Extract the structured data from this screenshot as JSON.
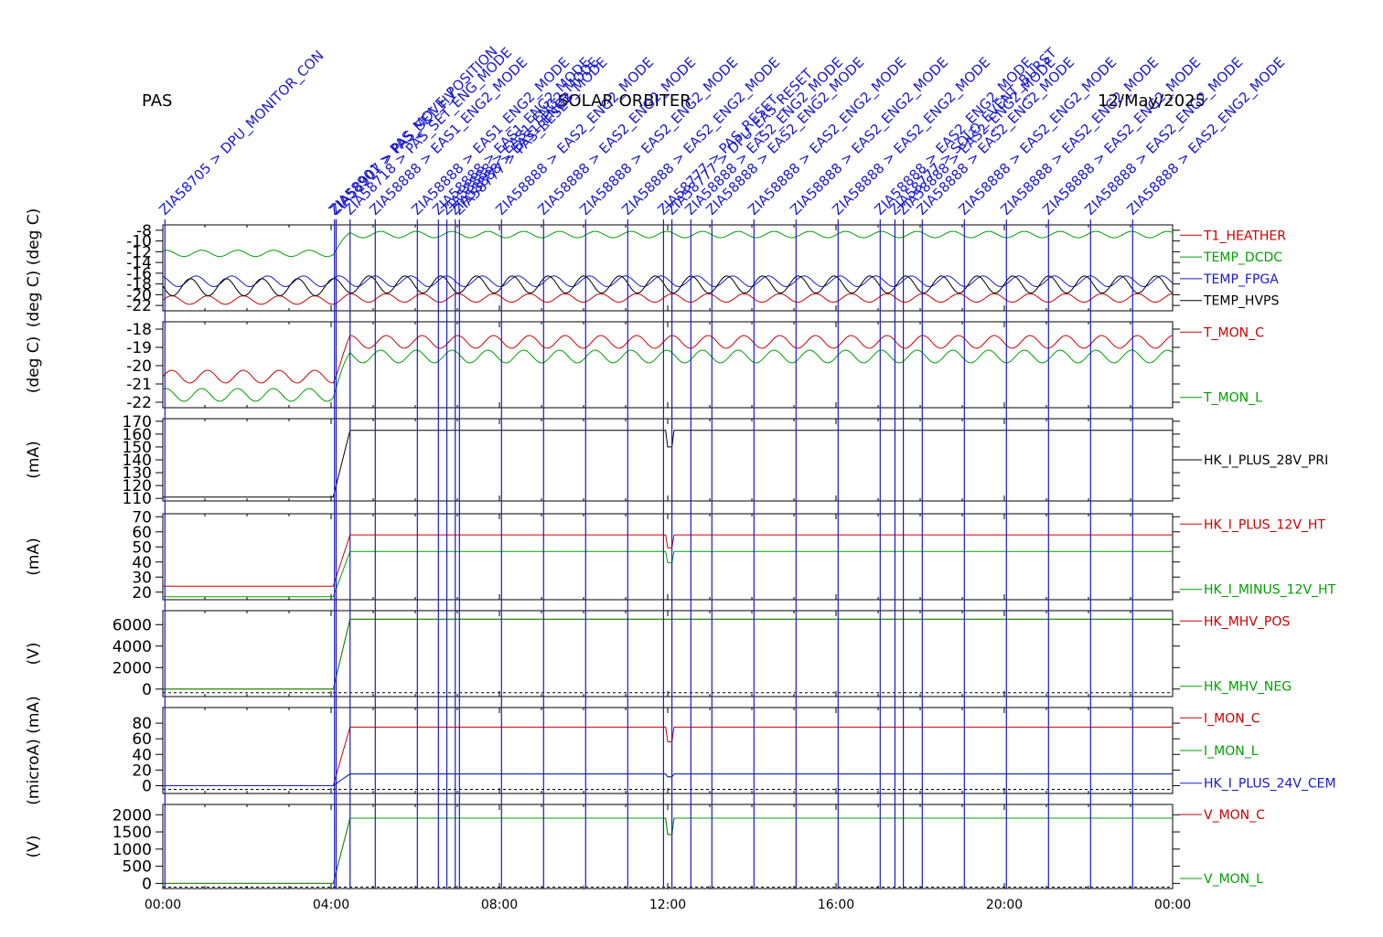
{
  "header": {
    "instrument": "PAS",
    "mission": "SOLAR ORBITER",
    "date": "12/May/2025"
  },
  "colors": {
    "red": "#cc0000",
    "green": "#00a000",
    "blue": "#1a1acc",
    "black": "#000000",
    "event_line": "#1a1acc"
  },
  "chart_data": [
    {
      "type": "line",
      "panel": 1,
      "ylabel": "(deg C)  (deg C)",
      "ylim": [
        -23,
        -7
      ],
      "yticks": [
        -8,
        -10,
        -12,
        -14,
        -16,
        -18,
        -20,
        -22
      ],
      "series": [
        {
          "name": "T1_HEATHER",
          "color": "red",
          "pre": -21.0,
          "post": -20.6,
          "amp": 0.8
        },
        {
          "name": "TEMP_DCDC",
          "color": "green",
          "pre": -12.3,
          "post": -8.8,
          "amp": 0.6
        },
        {
          "name": "TEMP_FPGA",
          "color": "blue",
          "pre": -17.5,
          "post": -17.5,
          "amp": 1.0
        },
        {
          "name": "TEMP_HVPS",
          "color": "black",
          "pre": -18.6,
          "post": -18.1,
          "amp": 1.6
        }
      ]
    },
    {
      "type": "line",
      "panel": 2,
      "ylabel": "(deg C)",
      "ylim": [
        -22.3,
        -17.6
      ],
      "yticks": [
        -18,
        -19,
        -20,
        -21,
        -22
      ],
      "series": [
        {
          "name": "T_MON_C",
          "color": "red",
          "pre": -20.6,
          "post": -18.7,
          "amp": 0.35
        },
        {
          "name": "T_MON_L",
          "color": "green",
          "pre": -21.6,
          "post": -19.5,
          "amp": 0.35
        }
      ]
    },
    {
      "type": "line",
      "panel": 3,
      "ylabel": "(mA)",
      "ylim": [
        108,
        172
      ],
      "yticks": [
        170,
        160,
        150,
        140,
        130,
        120,
        110
      ],
      "series": [
        {
          "name": "HK_I_PLUS_28V_PRI",
          "color": "black",
          "pre": 111,
          "post": 163,
          "amp": 0
        }
      ]
    },
    {
      "type": "line",
      "panel": 4,
      "ylabel": "(mA)",
      "ylim": [
        15,
        72
      ],
      "yticks": [
        70,
        60,
        50,
        40,
        30,
        20
      ],
      "series": [
        {
          "name": "HK_I_PLUS_12V_HT",
          "color": "red",
          "pre": 24,
          "post": 58,
          "amp": 0
        },
        {
          "name": "HK_I_MINUS_12V_HT",
          "color": "green",
          "pre": 17,
          "post": 47,
          "amp": 0
        }
      ]
    },
    {
      "type": "line",
      "panel": 5,
      "ylabel": "(V)",
      "ylim": [
        -700,
        7300
      ],
      "yticks": [
        6000,
        4000,
        2000,
        0
      ],
      "series": [
        {
          "name": "HK_MHV_POS",
          "color": "red",
          "pre": 0,
          "post": 6500,
          "amp": 0
        },
        {
          "name": "HK_MHV_NEG",
          "color": "green",
          "pre": 0,
          "post": 6500,
          "amp": 0
        }
      ]
    },
    {
      "type": "line",
      "panel": 6,
      "ylabel": "(microA) (mA)",
      "ylim": [
        -10,
        100
      ],
      "yticks": [
        80,
        60,
        40,
        20,
        0
      ],
      "series": [
        {
          "name": "I_MON_C",
          "color": "red",
          "pre": 0,
          "post": 75,
          "amp": 0
        },
        {
          "name": "I_MON_L",
          "color": "green",
          "pre": 0,
          "post": 15,
          "amp": 0
        },
        {
          "name": "HK_I_PLUS_24V_CEM",
          "color": "blue",
          "pre": 0,
          "post": 15,
          "amp": 0
        }
      ]
    },
    {
      "type": "line",
      "panel": 7,
      "ylabel": "(V)",
      "ylim": [
        -150,
        2300
      ],
      "yticks": [
        2000,
        1500,
        1000,
        500,
        0
      ],
      "series": [
        {
          "name": "V_MON_C",
          "color": "red",
          "pre": 0,
          "post": 1900,
          "amp": 0
        },
        {
          "name": "V_MON_L",
          "color": "green",
          "pre": 0,
          "post": 1900,
          "amp": 0
        }
      ]
    }
  ],
  "x_axis": {
    "xlim_hours": [
      0,
      24
    ],
    "ticks": [
      "00:00",
      "04:00",
      "08:00",
      "12:00",
      "16:00",
      "20:00",
      "00:00"
    ]
  },
  "events": [
    {
      "t": 0.05,
      "label": "ZIA58705 > DPU_MONITOR_CON"
    },
    {
      "t": 4.08,
      "label": "ZIA58901 > PAS_MOVE_POSITION"
    },
    {
      "t": 4.12,
      "label": "ZIA58907 > PAS_SET_HV"
    },
    {
      "t": 4.45,
      "label": "ZIA58718 > PAS_SET_ENG_MODE"
    },
    {
      "t": 5.05,
      "label": "ZIA58888 > EAS1_ENG2_MODE"
    },
    {
      "t": 6.05,
      "label": "ZIA58888 > EAS1_ENG2_MODE"
    },
    {
      "t": 6.55,
      "label": "ZIA58888 > EAS1_ENG2_MODE"
    },
    {
      "t": 6.75,
      "label": "ZIA58888 > EAS1_ENG2_MODE"
    },
    {
      "t": 6.95,
      "label": "ZIA58888 > EAS1_ENG2_MODE"
    },
    {
      "t": 7.05,
      "label": "ZIA58777 > PAS_RESET"
    },
    {
      "t": 8.05,
      "label": "ZIA58888 > EAS2_ENG2_MODE"
    },
    {
      "t": 9.05,
      "label": "ZIA58888 > EAS2_ENG2_MODE"
    },
    {
      "t": 10.05,
      "label": "ZIA58888 > EAS2_ENG2_MODE"
    },
    {
      "t": 11.05,
      "label": "ZIA58888 > EAS2_ENG2_MODE"
    },
    {
      "t": 11.9,
      "label": "ZIA58777 > PAS_RESET"
    },
    {
      "t": 12.1,
      "label": "ZIA58777 > DPU_EAS_RESET"
    },
    {
      "t": 12.55,
      "label": "ZIA58888 > EAS2_ENG2_MODE"
    },
    {
      "t": 13.05,
      "label": "ZIA58888 > EAS2_ENG2_MODE"
    },
    {
      "t": 14.05,
      "label": "ZIA58888 > EAS2_ENG2_MODE"
    },
    {
      "t": 15.05,
      "label": "ZIA58888 > EAS2_ENG2_MODE"
    },
    {
      "t": 16.05,
      "label": "ZIA58888 > EAS2_ENG2_MODE"
    },
    {
      "t": 17.05,
      "label": "ZIA58888 > EAS2_ENG2_MODE"
    },
    {
      "t": 17.4,
      "label": "ZIA58777 > SOLO_EVENT_BURST"
    },
    {
      "t": 17.6,
      "label": "ZIA58888 > EAS2_ENG2_MODE"
    },
    {
      "t": 18.05,
      "label": "ZIA58888 > EAS2_ENG2_MODE"
    },
    {
      "t": 19.05,
      "label": "ZIA58888 > EAS2_ENG2_MODE"
    },
    {
      "t": 20.05,
      "label": "ZIA58888 > EAS2_ENG2_MODE"
    },
    {
      "t": 21.05,
      "label": "ZIA58888 > EAS2_ENG2_MODE"
    },
    {
      "t": 22.05,
      "label": "ZIA58888 > EAS2_ENG2_MODE"
    },
    {
      "t": 23.05,
      "label": "ZIA58888 > EAS2_ENG2_MODE"
    }
  ],
  "ramp_start_hours": 4.05,
  "ramp_end_hours": 4.45,
  "glitch_hours": 12.05
}
